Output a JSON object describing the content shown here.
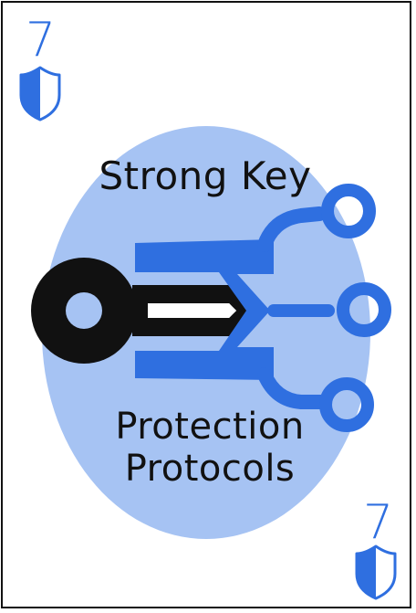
{
  "card": {
    "rank": "7",
    "suit_icon": "shield-icon",
    "title": "Strong Key",
    "subtitle_line1": "Protection",
    "subtitle_line2": "Protocols",
    "illustration_icon": "key-icon"
  },
  "colors": {
    "accent": "#2f6fe0",
    "oval": "#a6c3f3",
    "ink": "#111111",
    "background": "#ffffff"
  }
}
